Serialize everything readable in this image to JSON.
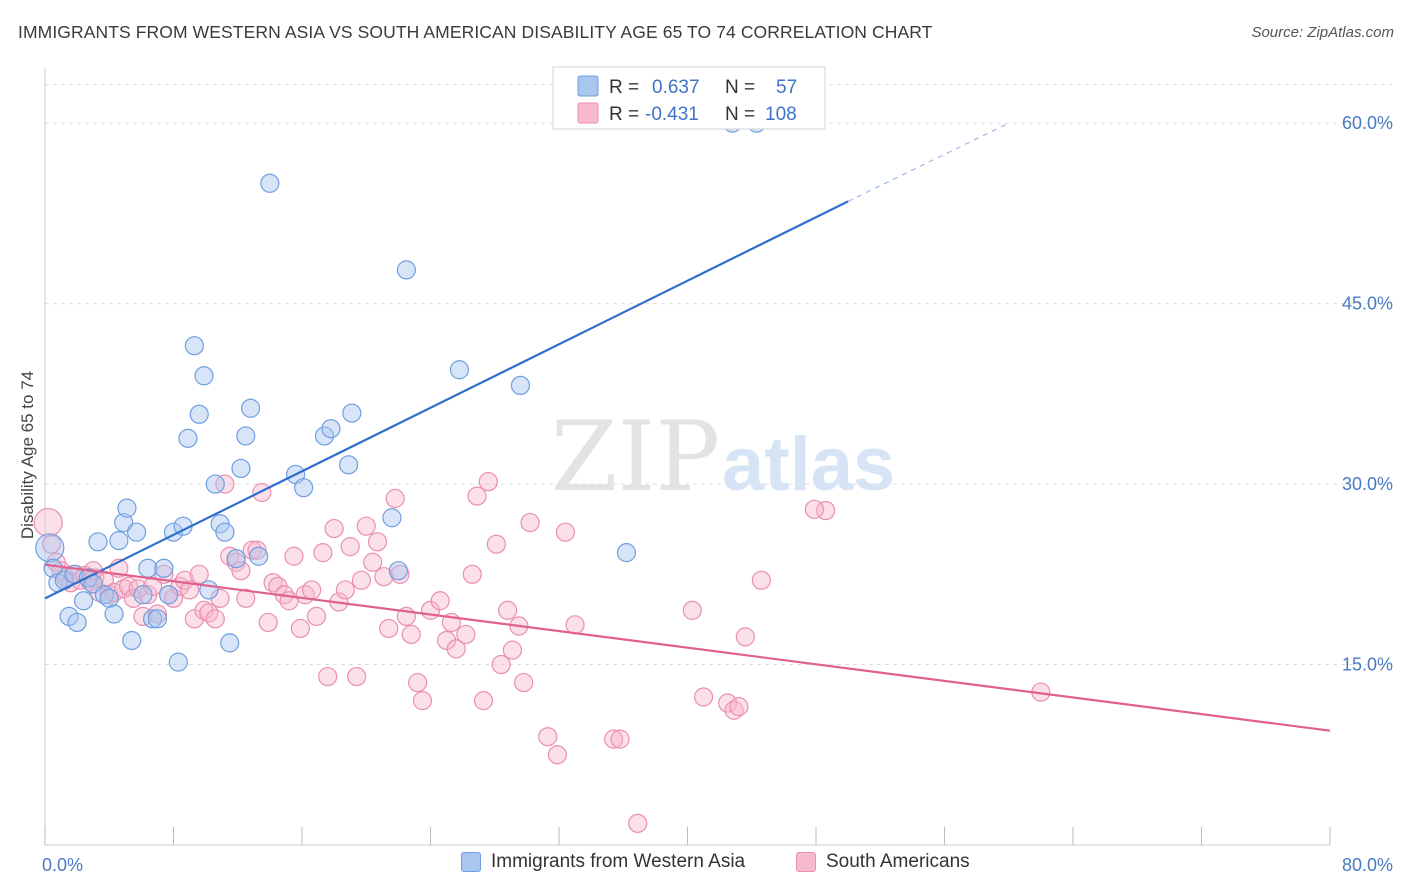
{
  "title": "IMMIGRANTS FROM WESTERN ASIA VS SOUTH AMERICAN DISABILITY AGE 65 TO 74 CORRELATION CHART",
  "source": "Source: ZipAtlas.com",
  "watermark": {
    "zip": "ZIP",
    "atlas": "atlas"
  },
  "legend": {
    "r_label": "R =",
    "n_label": "N =",
    "rows": [
      {
        "r": "0.637",
        "n": "57"
      },
      {
        "r": "-0.431",
        "n": "108"
      }
    ]
  },
  "colors": {
    "blue_fill": "#a9c6ef",
    "blue_stroke": "#6f9fe0",
    "blue_line": "#2f6fcc",
    "pink_fill": "#f6b9cf",
    "pink_stroke": "#ea8fb0",
    "pink_line": "#e06090",
    "axis_text": "#4a7ac4",
    "grid": "#dddddd"
  },
  "chart_data": {
    "type": "scatter",
    "title": "IMMIGRANTS FROM WESTERN ASIA VS SOUTH AMERICAN DISABILITY AGE 65 TO 74 CORRELATION CHART",
    "xlabel": "",
    "ylabel": "Disability Age 65 to 74",
    "xlim": [
      0,
      80
    ],
    "ylim": [
      0,
      64
    ],
    "x_tick_labels": [
      "0.0%",
      "80.0%"
    ],
    "y_ticks": [
      15,
      30,
      45,
      60
    ],
    "y_tick_labels": [
      "15.0%",
      "30.0%",
      "45.0%",
      "60.0%"
    ],
    "grid": true,
    "legend_position": "top-center",
    "series": [
      {
        "name": "Immigrants from Western Asia",
        "r": 0.637,
        "n": 57,
        "trend": {
          "x_start": 0,
          "y_start": 20.5,
          "x_end": 50,
          "y_end": 53.5,
          "dash_to_x": 60,
          "dash_to_y": 60.0
        },
        "points": [
          [
            0.3,
            24.7
          ],
          [
            0.5,
            23.0
          ],
          [
            0.8,
            21.8
          ],
          [
            1.2,
            22.0
          ],
          [
            1.5,
            19.0
          ],
          [
            1.8,
            22.5
          ],
          [
            2.0,
            18.5
          ],
          [
            2.4,
            20.3
          ],
          [
            2.7,
            22.2
          ],
          [
            3.0,
            21.7
          ],
          [
            3.3,
            25.2
          ],
          [
            3.7,
            20.8
          ],
          [
            4.0,
            20.5
          ],
          [
            4.3,
            19.2
          ],
          [
            4.6,
            25.3
          ],
          [
            4.9,
            26.8
          ],
          [
            5.1,
            28.0
          ],
          [
            5.4,
            17.0
          ],
          [
            5.7,
            26.0
          ],
          [
            6.1,
            20.8
          ],
          [
            6.4,
            23.0
          ],
          [
            6.7,
            18.8
          ],
          [
            7.0,
            18.8
          ],
          [
            7.4,
            23.0
          ],
          [
            7.7,
            20.8
          ],
          [
            8.0,
            26.0
          ],
          [
            8.3,
            15.2
          ],
          [
            8.6,
            26.5
          ],
          [
            8.9,
            33.8
          ],
          [
            9.3,
            41.5
          ],
          [
            9.6,
            35.8
          ],
          [
            9.9,
            39.0
          ],
          [
            10.2,
            21.2
          ],
          [
            10.6,
            30.0
          ],
          [
            10.9,
            26.7
          ],
          [
            11.2,
            26.0
          ],
          [
            11.5,
            16.8
          ],
          [
            11.9,
            23.8
          ],
          [
            12.2,
            31.3
          ],
          [
            12.5,
            34.0
          ],
          [
            12.8,
            36.3
          ],
          [
            13.3,
            24.0
          ],
          [
            14.0,
            55.0
          ],
          [
            15.6,
            30.8
          ],
          [
            16.1,
            29.7
          ],
          [
            17.4,
            34.0
          ],
          [
            17.8,
            34.6
          ],
          [
            18.9,
            31.6
          ],
          [
            19.1,
            35.9
          ],
          [
            21.6,
            27.2
          ],
          [
            22.0,
            22.8
          ],
          [
            22.5,
            47.8
          ],
          [
            25.8,
            39.5
          ],
          [
            29.6,
            38.2
          ],
          [
            36.2,
            24.3
          ],
          [
            44.3,
            60.0
          ],
          [
            42.8,
            60.0
          ]
        ]
      },
      {
        "name": "South Americans",
        "r": -0.431,
        "n": 108,
        "trend": {
          "x_start": 0,
          "y_start": 23.3,
          "x_end": 80,
          "y_end": 9.5
        },
        "points": [
          [
            0.2,
            26.8
          ],
          [
            0.4,
            25.0
          ],
          [
            0.7,
            23.5
          ],
          [
            1.0,
            22.8
          ],
          [
            1.3,
            22.2
          ],
          [
            1.6,
            21.8
          ],
          [
            1.9,
            22.5
          ],
          [
            2.2,
            22.0
          ],
          [
            2.5,
            22.4
          ],
          [
            2.8,
            21.9
          ],
          [
            3.1,
            22.2
          ],
          [
            3.4,
            21.0
          ],
          [
            3.7,
            22.0
          ],
          [
            4.0,
            20.8
          ],
          [
            4.3,
            21.0
          ],
          [
            4.6,
            23.0
          ],
          [
            4.9,
            21.3
          ],
          [
            5.2,
            21.5
          ],
          [
            5.5,
            20.5
          ],
          [
            5.8,
            21.3
          ],
          [
            6.1,
            19.0
          ],
          [
            6.4,
            20.8
          ],
          [
            6.7,
            21.5
          ],
          [
            7.0,
            19.2
          ],
          [
            7.4,
            22.5
          ],
          [
            7.7,
            20.8
          ],
          [
            8.0,
            20.5
          ],
          [
            8.4,
            21.5
          ],
          [
            8.7,
            22.0
          ],
          [
            9.0,
            21.2
          ],
          [
            9.3,
            18.8
          ],
          [
            9.6,
            22.5
          ],
          [
            9.9,
            19.5
          ],
          [
            10.2,
            19.3
          ],
          [
            10.6,
            18.8
          ],
          [
            10.9,
            20.5
          ],
          [
            11.2,
            30.0
          ],
          [
            11.5,
            24.0
          ],
          [
            11.9,
            23.5
          ],
          [
            12.2,
            22.8
          ],
          [
            12.5,
            20.5
          ],
          [
            12.9,
            24.5
          ],
          [
            13.2,
            24.5
          ],
          [
            13.5,
            29.3
          ],
          [
            13.9,
            18.5
          ],
          [
            14.2,
            21.8
          ],
          [
            14.5,
            21.5
          ],
          [
            14.9,
            20.8
          ],
          [
            15.2,
            20.3
          ],
          [
            15.5,
            24.0
          ],
          [
            15.9,
            18.0
          ],
          [
            16.2,
            20.8
          ],
          [
            16.6,
            21.2
          ],
          [
            16.9,
            19.0
          ],
          [
            17.3,
            24.3
          ],
          [
            17.6,
            14.0
          ],
          [
            18.0,
            26.3
          ],
          [
            18.3,
            20.2
          ],
          [
            18.7,
            21.2
          ],
          [
            19.0,
            24.8
          ],
          [
            19.4,
            14.0
          ],
          [
            19.7,
            22.0
          ],
          [
            20.0,
            26.5
          ],
          [
            20.4,
            23.5
          ],
          [
            20.7,
            25.2
          ],
          [
            21.1,
            22.3
          ],
          [
            21.4,
            18.0
          ],
          [
            21.8,
            28.8
          ],
          [
            22.1,
            22.5
          ],
          [
            22.5,
            19.0
          ],
          [
            22.8,
            17.5
          ],
          [
            23.2,
            13.5
          ],
          [
            23.5,
            12.0
          ],
          [
            24.0,
            19.5
          ],
          [
            24.6,
            20.3
          ],
          [
            25.0,
            17.0
          ],
          [
            25.3,
            18.5
          ],
          [
            25.6,
            16.3
          ],
          [
            26.2,
            17.5
          ],
          [
            26.6,
            22.5
          ],
          [
            26.9,
            29.0
          ],
          [
            27.3,
            12.0
          ],
          [
            27.6,
            30.2
          ],
          [
            28.1,
            25.0
          ],
          [
            28.4,
            15.0
          ],
          [
            28.8,
            19.5
          ],
          [
            29.1,
            16.2
          ],
          [
            29.5,
            18.2
          ],
          [
            29.8,
            13.5
          ],
          [
            30.2,
            26.8
          ],
          [
            31.3,
            9.0
          ],
          [
            31.9,
            7.5
          ],
          [
            32.4,
            26.0
          ],
          [
            33.0,
            18.3
          ],
          [
            35.4,
            8.8
          ],
          [
            35.8,
            8.8
          ],
          [
            36.9,
            1.8
          ],
          [
            40.3,
            19.5
          ],
          [
            41.0,
            12.3
          ],
          [
            42.5,
            11.8
          ],
          [
            42.9,
            11.2
          ],
          [
            43.2,
            11.5
          ],
          [
            43.6,
            17.3
          ],
          [
            44.6,
            22.0
          ],
          [
            48.6,
            27.8
          ],
          [
            47.9,
            27.9
          ],
          [
            62.0,
            12.7
          ],
          [
            3.0,
            22.8
          ]
        ]
      }
    ]
  },
  "bottom_legend": {
    "items": [
      {
        "label": "Immigrants from Western Asia"
      },
      {
        "label": "South Americans"
      }
    ]
  }
}
